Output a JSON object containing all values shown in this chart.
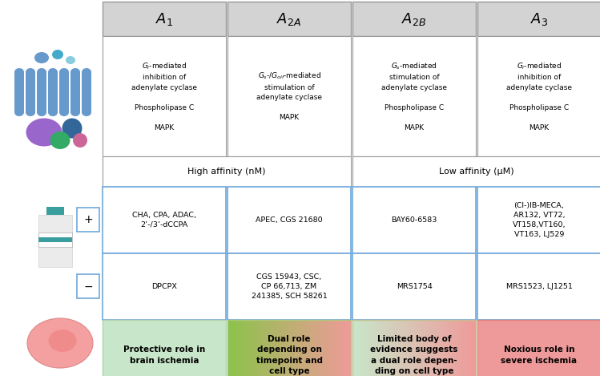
{
  "fig_width": 7.49,
  "fig_height": 4.69,
  "bg_color": "#ffffff",
  "header_bg": "#d3d3d3",
  "header_border": "#999999",
  "cell_bg": "#ffffff",
  "cell_border": "#999999",
  "blue_border": "#6fa8dc",
  "header_texts_latex": [
    "$A_1$",
    "$A_{2A}$",
    "$A_{2B}$",
    "$A_3$"
  ],
  "signal_texts": [
    "$G_i$-mediated\ninhibition of\nadenylate cyclase\n\nPhospholipase C\n\nMAPK",
    "$G_s$-/$G_{olf}$-mediated\nstimulation of\nadenylate cyclase\n\nMAPK",
    "$G_s$-mediated\nstimulation of\nadenylate cyclase\n\nPhospholipase C\n\nMAPK",
    "$G_i$-mediated\ninhibition of\nadenylate cyclase\n\nPhospholipase C\n\nMAPK"
  ],
  "agonist_texts": [
    "CHA, CPA, ADAC,\n2’-/3’-dCCPA",
    "APEC, CGS 21680",
    "BAY60-6583",
    "(Cl-)IB-MECA,\nAR132, VT72,\nVT158,VT160,\nVT163, LJ529"
  ],
  "antagonist_texts": [
    "DPCPX",
    "CGS 15943, CSC,\nCP 66,713, ZM\n241385, SCH 58261",
    "MRS1754",
    "MRS1523, LJ1251"
  ],
  "bottom_texts": [
    "Protective role in\nbrain ischemia",
    "Dual role\ndepending on\ntimepoint and\ncell type",
    "Limited body of\nevidence suggests\na dual role depen-\nding on cell type",
    "Noxious role in\nsevere ischemia"
  ],
  "bottom_color_left": [
    "#c8e6c9",
    "#f48fb1",
    "#c8e6c9",
    "#ef9a9a"
  ],
  "bottom_color_right": [
    "#c8e6c9",
    "#ef9a9a",
    "#ef9a9a",
    "#ef9a9a"
  ],
  "bottom_gradient_left": [
    "#d4edda",
    "#f4c2c2",
    "#d4edda",
    "#f4a8a8"
  ],
  "bottom_gradient_right": [
    "#d4edda",
    "#f4a8a8",
    "#f4a8a8",
    "#f4a8a8"
  ]
}
